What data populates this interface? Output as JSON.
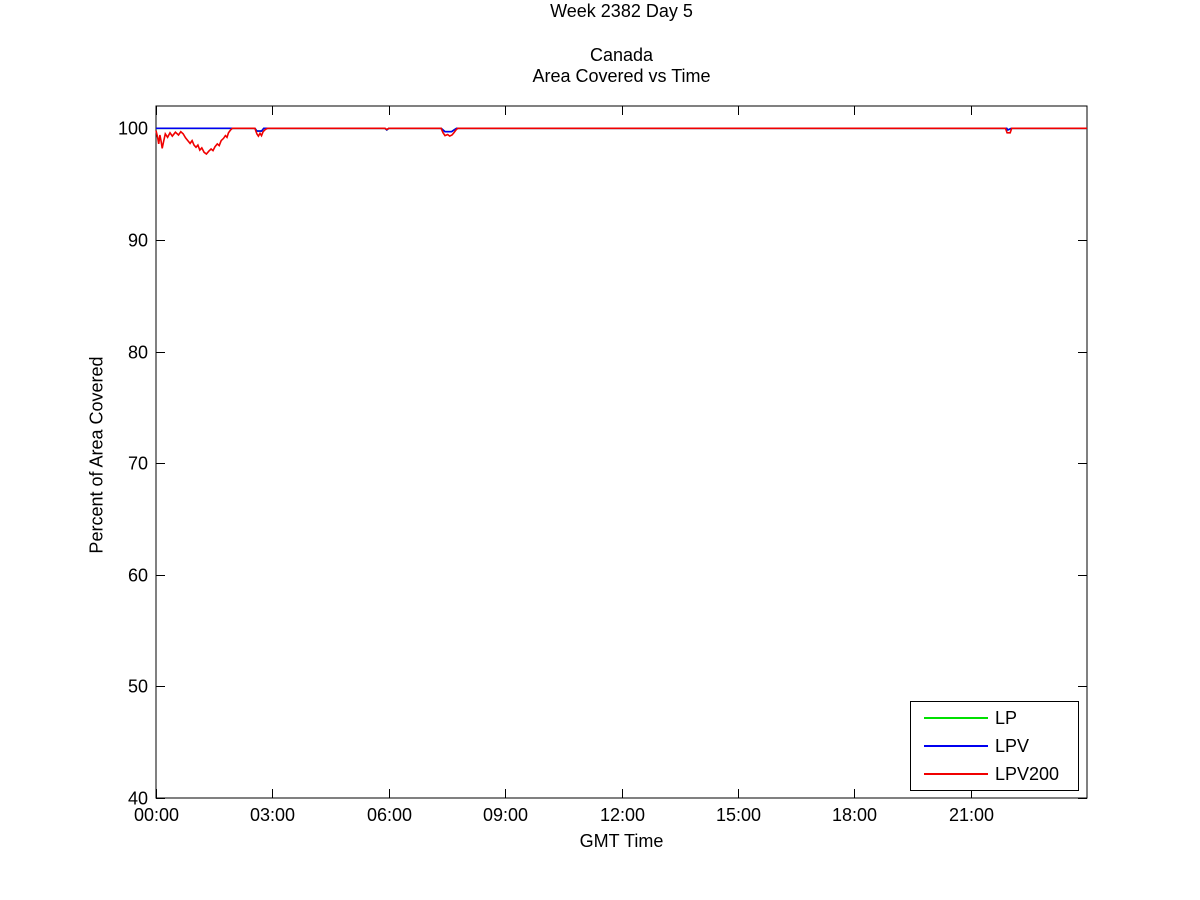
{
  "page_title": "Week 2382 Day 5",
  "chart_data": {
    "type": "line",
    "title": "Week 2382 Day 5",
    "subtitle1": "Canada",
    "subtitle2": "Area Covered vs Time",
    "xlabel": "GMT Time",
    "ylabel": "Percent of Area Covered",
    "xlim": [
      0,
      24
    ],
    "ylim": [
      40,
      102
    ],
    "grid": false,
    "axis_color": "#000000",
    "background_color": "#ffffff",
    "xticks": [
      {
        "value": 0,
        "label": "00:00"
      },
      {
        "value": 3,
        "label": "03:00"
      },
      {
        "value": 6,
        "label": "06:00"
      },
      {
        "value": 9,
        "label": "09:00"
      },
      {
        "value": 12,
        "label": "12:00"
      },
      {
        "value": 15,
        "label": "15:00"
      },
      {
        "value": 18,
        "label": "18:00"
      },
      {
        "value": 21,
        "label": "21:00"
      }
    ],
    "yticks": [
      {
        "value": 40,
        "label": "40"
      },
      {
        "value": 50,
        "label": "50"
      },
      {
        "value": 60,
        "label": "60"
      },
      {
        "value": 70,
        "label": "70"
      },
      {
        "value": 80,
        "label": "80"
      },
      {
        "value": 90,
        "label": "90"
      },
      {
        "value": 100,
        "label": "100"
      }
    ],
    "legend_position": "bottom-right",
    "series": [
      {
        "name": "LP",
        "color": "#00e000",
        "points": [
          [
            0,
            100
          ],
          [
            2.55,
            100
          ],
          [
            2.6,
            99.75
          ],
          [
            2.72,
            99.75
          ],
          [
            2.78,
            100
          ],
          [
            5.9,
            100
          ],
          [
            5.95,
            99.85
          ],
          [
            6.0,
            100
          ],
          [
            7.35,
            100
          ],
          [
            7.42,
            99.8
          ],
          [
            7.45,
            99.7
          ],
          [
            7.62,
            99.7
          ],
          [
            7.68,
            99.85
          ],
          [
            7.75,
            100
          ],
          [
            21.93,
            100
          ],
          [
            21.96,
            99.85
          ],
          [
            22.05,
            100
          ],
          [
            24,
            100
          ]
        ]
      },
      {
        "name": "LPV",
        "color": "#0000f0",
        "points": [
          [
            0,
            100
          ],
          [
            2.55,
            100
          ],
          [
            2.6,
            99.75
          ],
          [
            2.72,
            99.75
          ],
          [
            2.78,
            100
          ],
          [
            5.9,
            100
          ],
          [
            5.95,
            99.85
          ],
          [
            6.0,
            100
          ],
          [
            7.35,
            100
          ],
          [
            7.42,
            99.8
          ],
          [
            7.45,
            99.7
          ],
          [
            7.62,
            99.7
          ],
          [
            7.68,
            99.85
          ],
          [
            7.75,
            100
          ],
          [
            21.93,
            100
          ],
          [
            21.96,
            99.85
          ],
          [
            22.05,
            100
          ],
          [
            24,
            100
          ]
        ]
      },
      {
        "name": "LPV200",
        "color": "#f00000",
        "points": [
          [
            0,
            99.8
          ],
          [
            0.04,
            99.2
          ],
          [
            0.07,
            98.6
          ],
          [
            0.1,
            99.4
          ],
          [
            0.13,
            98.9
          ],
          [
            0.16,
            98.2
          ],
          [
            0.2,
            98.9
          ],
          [
            0.24,
            99.5
          ],
          [
            0.3,
            99.2
          ],
          [
            0.36,
            99.6
          ],
          [
            0.42,
            99.3
          ],
          [
            0.5,
            99.65
          ],
          [
            0.58,
            99.4
          ],
          [
            0.64,
            99.7
          ],
          [
            0.7,
            99.5
          ],
          [
            0.76,
            99.15
          ],
          [
            0.82,
            98.9
          ],
          [
            0.88,
            98.65
          ],
          [
            0.93,
            98.9
          ],
          [
            0.98,
            98.5
          ],
          [
            1.03,
            98.3
          ],
          [
            1.08,
            98.5
          ],
          [
            1.13,
            98.05
          ],
          [
            1.18,
            98.25
          ],
          [
            1.24,
            97.85
          ],
          [
            1.3,
            97.7
          ],
          [
            1.36,
            97.95
          ],
          [
            1.42,
            98.15
          ],
          [
            1.47,
            98.0
          ],
          [
            1.52,
            98.35
          ],
          [
            1.58,
            98.6
          ],
          [
            1.63,
            98.45
          ],
          [
            1.68,
            98.9
          ],
          [
            1.74,
            99.1
          ],
          [
            1.79,
            99.35
          ],
          [
            1.83,
            99.2
          ],
          [
            1.87,
            99.6
          ],
          [
            1.92,
            99.85
          ],
          [
            1.97,
            100
          ],
          [
            2.55,
            100
          ],
          [
            2.6,
            99.5
          ],
          [
            2.64,
            99.3
          ],
          [
            2.68,
            99.55
          ],
          [
            2.72,
            99.35
          ],
          [
            2.76,
            99.7
          ],
          [
            2.82,
            99.9
          ],
          [
            2.88,
            100
          ],
          [
            5.9,
            100
          ],
          [
            5.95,
            99.9
          ],
          [
            6.0,
            100
          ],
          [
            7.35,
            100
          ],
          [
            7.4,
            99.6
          ],
          [
            7.45,
            99.35
          ],
          [
            7.52,
            99.45
          ],
          [
            7.57,
            99.3
          ],
          [
            7.63,
            99.4
          ],
          [
            7.68,
            99.6
          ],
          [
            7.73,
            99.85
          ],
          [
            7.78,
            100
          ],
          [
            21.9,
            100
          ],
          [
            21.94,
            99.6
          ],
          [
            22.02,
            99.6
          ],
          [
            22.06,
            100
          ],
          [
            24,
            100
          ]
        ]
      }
    ]
  }
}
